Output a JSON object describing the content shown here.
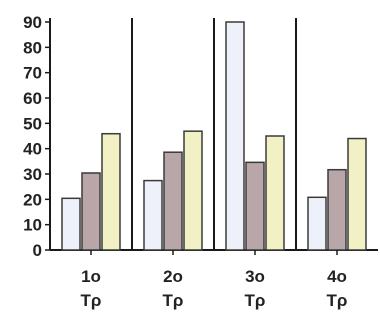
{
  "chart_data": {
    "type": "bar",
    "categories": [
      [
        "1o",
        "Τρ"
      ],
      [
        "2o",
        "Τρ"
      ],
      [
        "3o",
        "Τρ"
      ],
      [
        "4o",
        "Τρ"
      ]
    ],
    "series": [
      {
        "values": [
          20.4,
          27.4,
          90,
          20.8
        ],
        "color": "#eef0fa"
      },
      {
        "values": [
          30.4,
          38.6,
          34.6,
          31.7
        ],
        "color": "#b9a6a8"
      },
      {
        "values": [
          45.9,
          46.9,
          45.0,
          44.0
        ],
        "color": "#f2f1c6"
      }
    ],
    "yticks": [
      "0",
      "10",
      "20",
      "30",
      "40",
      "50",
      "60",
      "70",
      "80",
      "90"
    ],
    "ylim": [
      0,
      90
    ],
    "grid": false,
    "group_separators": true,
    "colors": {
      "axis": "#1a1a1a",
      "bar_edge": "#3a3a3a",
      "text": "#222222"
    }
  }
}
